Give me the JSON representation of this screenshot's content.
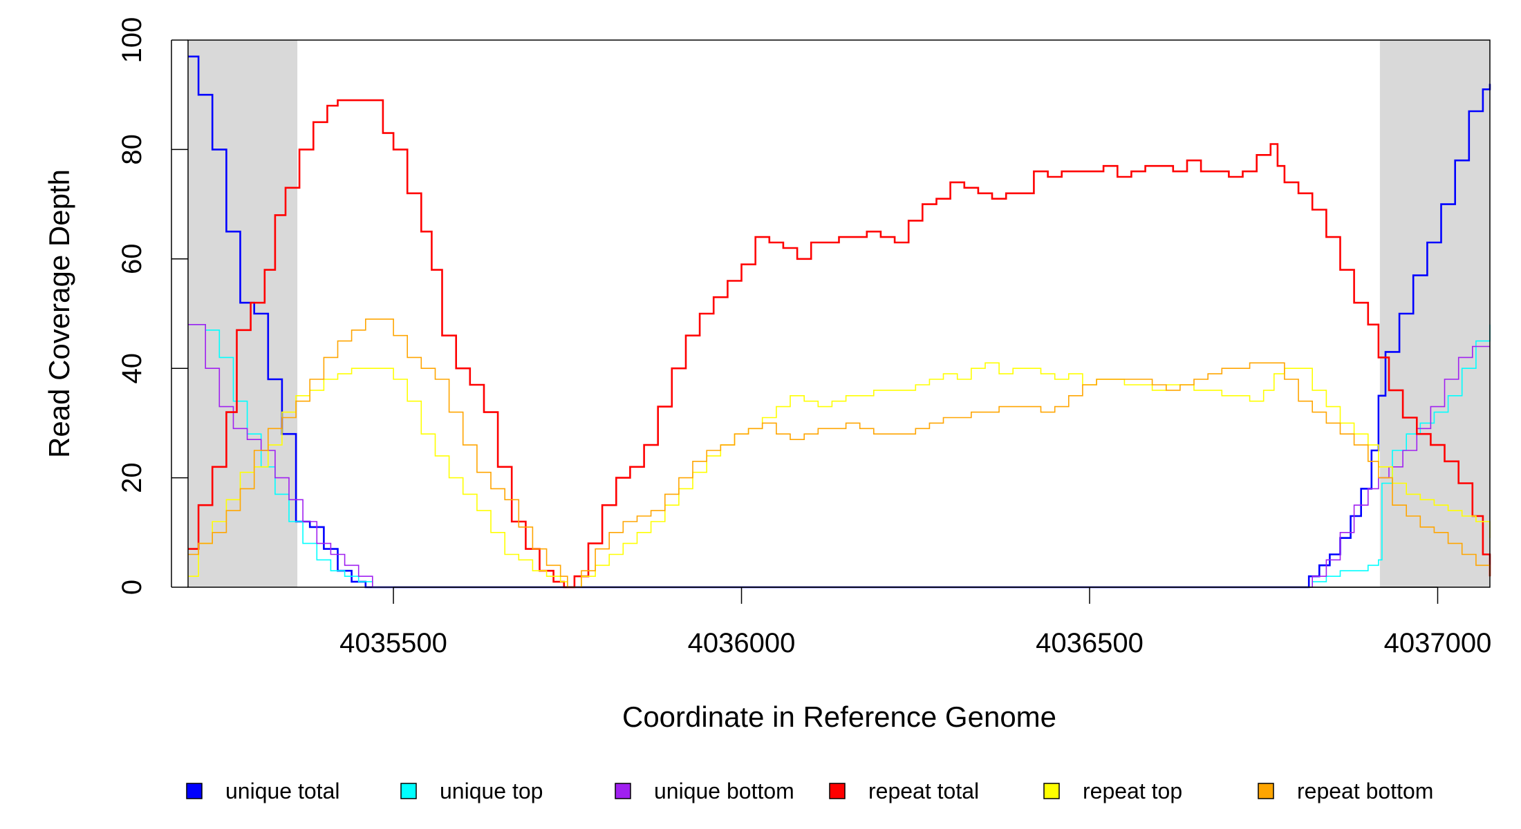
{
  "chart_data": {
    "type": "line",
    "xlabel": "Coordinate in Reference Genome",
    "ylabel": "Read Coverage Depth",
    "xlim": [
      4035205,
      4037075
    ],
    "ylim": [
      0,
      100
    ],
    "x_ticks": [
      4035500,
      4036000,
      4036500,
      4037000
    ],
    "x_tick_labels": [
      "4035500",
      "4036000",
      "4036500",
      "4037000"
    ],
    "y_ticks": [
      0,
      20,
      40,
      60,
      80,
      100
    ],
    "y_tick_labels": [
      "0",
      "20",
      "40",
      "60",
      "80",
      "100"
    ],
    "shaded_regions": [
      [
        4035205,
        4035362
      ],
      [
        4036917,
        4037075
      ]
    ],
    "shade_color": "#d9d9d9",
    "legend_position": "bottom",
    "legend": [
      {
        "label": "unique total",
        "color": "#0000ff"
      },
      {
        "label": "unique top",
        "color": "#00ffff"
      },
      {
        "label": "unique bottom",
        "color": "#a020f0"
      },
      {
        "label": "repeat total",
        "color": "#ff0000"
      },
      {
        "label": "repeat top",
        "color": "#ffff00"
      },
      {
        "label": "repeat bottom",
        "color": "#ffa500"
      }
    ],
    "series": [
      {
        "label": "unique total",
        "color": "#0000ff",
        "width": 2.6,
        "x": [
          4035205,
          4035220,
          4035240,
          4035260,
          4035280,
          4035300,
          4035320,
          4035340,
          4035360,
          4035380,
          4035400,
          4035420,
          4035440,
          4035460,
          4035480,
          4035500,
          4036800,
          4036815,
          4036830,
          4036845,
          4036860,
          4036875,
          4036890,
          4036905,
          4036915,
          4036925,
          4036945,
          4036965,
          4036985,
          4037005,
          4037025,
          4037045,
          4037065,
          4037075
        ],
        "y": [
          97,
          90,
          80,
          65,
          52,
          50,
          38,
          28,
          12,
          11,
          7,
          3,
          1,
          0,
          0,
          0,
          0,
          2,
          4,
          6,
          9,
          13,
          18,
          25,
          35,
          43,
          50,
          57,
          63,
          70,
          78,
          87,
          91,
          92
        ]
      },
      {
        "label": "unique top",
        "color": "#00ffff",
        "width": 1.6,
        "x": [
          4035205,
          4035230,
          4035250,
          4035270,
          4035290,
          4035310,
          4035330,
          4035350,
          4035370,
          4035390,
          4035410,
          4035430,
          4035450,
          4035470,
          4036800,
          4036820,
          4036840,
          4036860,
          4036880,
          4036900,
          4036915,
          4036920,
          4036935,
          4036955,
          4036975,
          4036995,
          4037015,
          4037035,
          4037055,
          4037075
        ],
        "y": [
          48,
          47,
          42,
          34,
          28,
          22,
          17,
          12,
          8,
          5,
          3,
          2,
          1,
          0,
          0,
          1,
          2,
          3,
          3,
          4,
          5,
          19,
          25,
          28,
          30,
          32,
          35,
          40,
          45,
          48
        ]
      },
      {
        "label": "unique bottom",
        "color": "#a020f0",
        "width": 1.6,
        "x": [
          4035205,
          4035230,
          4035250,
          4035270,
          4035290,
          4035310,
          4035330,
          4035350,
          4035370,
          4035390,
          4035410,
          4035430,
          4035450,
          4035470,
          4036800,
          4036820,
          4036840,
          4036860,
          4036880,
          4036900,
          4036915,
          4036930,
          4036950,
          4036970,
          4036990,
          4037010,
          4037030,
          4037050,
          4037075
        ],
        "y": [
          48,
          40,
          33,
          29,
          27,
          25,
          20,
          16,
          12,
          8,
          6,
          4,
          2,
          0,
          0,
          2,
          5,
          10,
          15,
          18,
          20,
          22,
          25,
          29,
          33,
          38,
          42,
          44,
          44
        ]
      },
      {
        "label": "repeat total",
        "color": "#ff0000",
        "width": 2.6,
        "x": [
          4035205,
          4035220,
          4035240,
          4035260,
          4035275,
          4035295,
          4035315,
          4035330,
          4035345,
          4035365,
          4035385,
          4035405,
          4035420,
          4035440,
          4035465,
          4035485,
          4035500,
          4035520,
          4035540,
          4035555,
          4035570,
          4035590,
          4035610,
          4035630,
          4035650,
          4035670,
          4035690,
          4035710,
          4035730,
          4035745,
          4035760,
          4035780,
          4035800,
          4035820,
          4035840,
          4035860,
          4035880,
          4035900,
          4035920,
          4035940,
          4035960,
          4035980,
          4036000,
          4036020,
          4036040,
          4036060,
          4036080,
          4036100,
          4036120,
          4036140,
          4036160,
          4036180,
          4036200,
          4036220,
          4036240,
          4036260,
          4036280,
          4036300,
          4036320,
          4036340,
          4036360,
          4036380,
          4036400,
          4036420,
          4036440,
          4036460,
          4036480,
          4036500,
          4036520,
          4036540,
          4036560,
          4036580,
          4036600,
          4036620,
          4036640,
          4036660,
          4036680,
          4036700,
          4036720,
          4036740,
          4036760,
          4036770,
          4036780,
          4036800,
          4036820,
          4036840,
          4036860,
          4036880,
          4036900,
          4036915,
          4036930,
          4036950,
          4036970,
          4036990,
          4037010,
          4037030,
          4037050,
          4037065,
          4037075
        ],
        "y": [
          7,
          15,
          22,
          32,
          47,
          52,
          58,
          68,
          73,
          80,
          85,
          88,
          89,
          89,
          89,
          83,
          80,
          72,
          65,
          58,
          46,
          40,
          37,
          32,
          22,
          12,
          7,
          3,
          1,
          0,
          2,
          8,
          15,
          20,
          22,
          26,
          33,
          40,
          46,
          50,
          53,
          56,
          59,
          64,
          63,
          62,
          60,
          63,
          63,
          64,
          64,
          65,
          64,
          63,
          67,
          70,
          71,
          74,
          73,
          72,
          71,
          72,
          72,
          76,
          75,
          76,
          76,
          76,
          77,
          75,
          76,
          77,
          77,
          76,
          78,
          76,
          76,
          75,
          76,
          79,
          81,
          77,
          74,
          72,
          69,
          64,
          58,
          52,
          48,
          42,
          36,
          31,
          28,
          26,
          23,
          19,
          13,
          6,
          2
        ]
      },
      {
        "label": "repeat top",
        "color": "#ffff00",
        "width": 1.6,
        "x": [
          4035205,
          4035220,
          4035240,
          4035260,
          4035280,
          4035300,
          4035320,
          4035340,
          4035360,
          4035380,
          4035400,
          4035420,
          4035440,
          4035460,
          4035480,
          4035500,
          4035520,
          4035540,
          4035560,
          4035580,
          4035600,
          4035620,
          4035640,
          4035660,
          4035680,
          4035700,
          4035720,
          4035740,
          4035750,
          4035770,
          4035790,
          4035810,
          4035830,
          4035850,
          4035870,
          4035890,
          4035910,
          4035930,
          4035950,
          4035970,
          4035990,
          4036010,
          4036030,
          4036050,
          4036070,
          4036090,
          4036110,
          4036130,
          4036150,
          4036170,
          4036190,
          4036210,
          4036230,
          4036250,
          4036270,
          4036290,
          4036310,
          4036330,
          4036350,
          4036370,
          4036390,
          4036410,
          4036430,
          4036450,
          4036470,
          4036490,
          4036510,
          4036530,
          4036550,
          4036570,
          4036590,
          4036610,
          4036630,
          4036650,
          4036670,
          4036690,
          4036710,
          4036730,
          4036750,
          4036765,
          4036780,
          4036800,
          4036820,
          4036840,
          4036860,
          4036880,
          4036900,
          4036915,
          4036935,
          4036955,
          4036975,
          4036995,
          4037015,
          4037035,
          4037055,
          4037075
        ],
        "y": [
          2,
          8,
          12,
          16,
          21,
          22,
          26,
          32,
          35,
          36,
          38,
          39,
          40,
          40,
          40,
          38,
          34,
          28,
          24,
          20,
          17,
          14,
          10,
          6,
          5,
          3,
          2,
          1,
          0,
          2,
          4,
          6,
          8,
          10,
          12,
          15,
          18,
          21,
          24,
          26,
          28,
          29,
          31,
          33,
          35,
          34,
          33,
          34,
          35,
          35,
          36,
          36,
          36,
          37,
          38,
          39,
          38,
          40,
          41,
          39,
          40,
          40,
          39,
          38,
          39,
          37,
          38,
          38,
          37,
          37,
          36,
          37,
          37,
          36,
          36,
          35,
          35,
          34,
          36,
          39,
          40,
          40,
          36,
          33,
          30,
          28,
          26,
          22,
          19,
          17,
          16,
          15,
          14,
          13,
          12,
          9
        ]
      },
      {
        "label": "repeat bottom",
        "color": "#ffa500",
        "width": 1.6,
        "x": [
          4035205,
          4035220,
          4035240,
          4035260,
          4035280,
          4035300,
          4035320,
          4035340,
          4035360,
          4035380,
          4035400,
          4035420,
          4035440,
          4035460,
          4035480,
          4035500,
          4035520,
          4035540,
          4035560,
          4035580,
          4035600,
          4035620,
          4035640,
          4035660,
          4035680,
          4035700,
          4035720,
          4035740,
          4035750,
          4035770,
          4035790,
          4035810,
          4035830,
          4035850,
          4035870,
          4035890,
          4035910,
          4035930,
          4035950,
          4035970,
          4035990,
          4036010,
          4036030,
          4036050,
          4036070,
          4036090,
          4036110,
          4036130,
          4036150,
          4036170,
          4036190,
          4036210,
          4036230,
          4036250,
          4036270,
          4036290,
          4036310,
          4036330,
          4036350,
          4036370,
          4036390,
          4036410,
          4036430,
          4036450,
          4036470,
          4036490,
          4036510,
          4036530,
          4036550,
          4036570,
          4036590,
          4036610,
          4036630,
          4036650,
          4036670,
          4036690,
          4036710,
          4036730,
          4036750,
          4036765,
          4036780,
          4036800,
          4036820,
          4036840,
          4036860,
          4036880,
          4036900,
          4036915,
          4036935,
          4036955,
          4036975,
          4036995,
          4037015,
          4037035,
          4037055,
          4037075
        ],
        "y": [
          6,
          8,
          10,
          14,
          18,
          25,
          29,
          31,
          34,
          38,
          42,
          45,
          47,
          49,
          49,
          46,
          42,
          40,
          38,
          32,
          26,
          21,
          18,
          16,
          11,
          7,
          4,
          2,
          0,
          3,
          7,
          10,
          12,
          13,
          14,
          17,
          20,
          23,
          25,
          26,
          28,
          29,
          30,
          28,
          27,
          28,
          29,
          29,
          30,
          29,
          28,
          28,
          28,
          29,
          30,
          31,
          31,
          32,
          32,
          33,
          33,
          33,
          32,
          33,
          35,
          37,
          38,
          38,
          38,
          38,
          37,
          36,
          37,
          38,
          39,
          40,
          40,
          41,
          41,
          41,
          38,
          34,
          32,
          30,
          28,
          26,
          23,
          20,
          15,
          13,
          11,
          10,
          8,
          6,
          4,
          2
        ]
      }
    ]
  }
}
